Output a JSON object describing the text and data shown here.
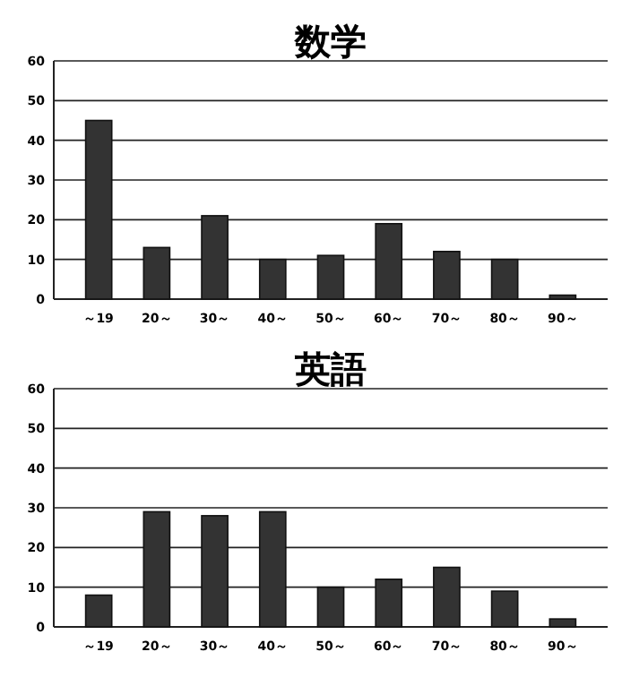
{
  "chart_data": [
    {
      "type": "bar",
      "title": "数学",
      "categories": [
        "～19",
        "20～",
        "30～",
        "40～",
        "50～",
        "60～",
        "70～",
        "80～",
        "90～"
      ],
      "values": [
        45,
        13,
        21,
        10,
        11,
        19,
        12,
        10,
        1
      ],
      "color": "#333333",
      "ylim": [
        0,
        60
      ],
      "yticks": [
        0,
        10,
        20,
        30,
        40,
        50,
        60
      ],
      "grid": "y"
    },
    {
      "type": "bar",
      "title": "英語",
      "categories": [
        "～19",
        "20～",
        "30～",
        "40～",
        "50～",
        "60～",
        "70～",
        "80～",
        "90～"
      ],
      "values": [
        8,
        29,
        28,
        29,
        10,
        12,
        15,
        9,
        2
      ],
      "color": "#333333",
      "ylim": [
        0,
        60
      ],
      "yticks": [
        0,
        10,
        20,
        30,
        40,
        50,
        60
      ],
      "grid": "y"
    }
  ]
}
